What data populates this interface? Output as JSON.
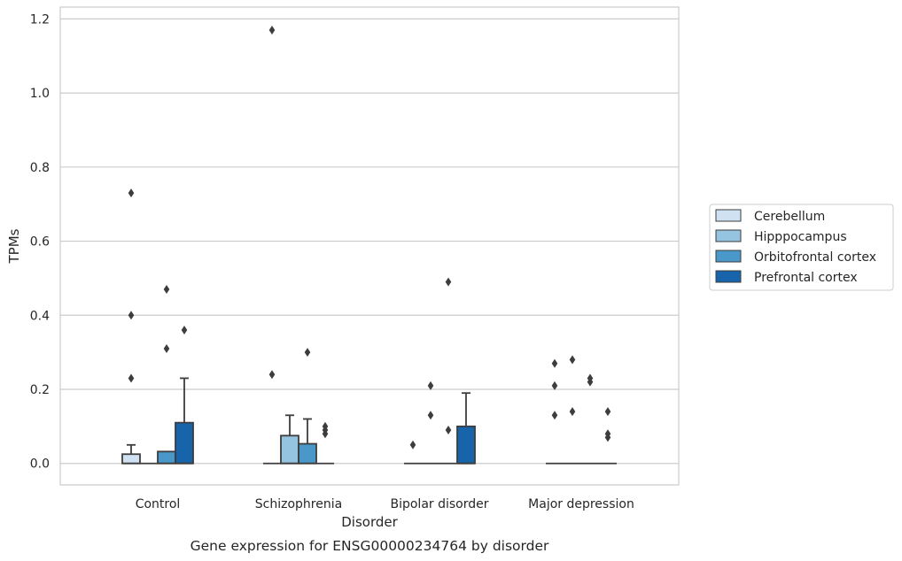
{
  "chart_data": {
    "type": "box",
    "title": "",
    "caption": "Gene expression for ENSG00000234764 by disorder",
    "xlabel": "Disorder",
    "ylabel": "TPMs",
    "ylim": [
      -0.058,
      1.232
    ],
    "yticks": [
      0.0,
      0.2,
      0.4,
      0.6,
      0.8,
      1.0,
      1.2
    ],
    "ytick_labels": [
      "0.0",
      "0.2",
      "0.4",
      "0.6",
      "0.8",
      "1.0",
      "1.2"
    ],
    "grid": "horizontal",
    "legend_placement": "right",
    "categories": [
      "Control",
      "Schizophrenia",
      "Bipolar disorder",
      "Major depression"
    ],
    "series": [
      {
        "name": "Cerebellum",
        "color": "#d0e2f2",
        "boxes": [
          {
            "q1": 0.0,
            "median": 0.0,
            "q3": 0.025,
            "whisker_low": 0.0,
            "whisker_high": 0.05,
            "outliers": [
              0.23,
              0.4,
              0.73
            ]
          },
          {
            "q1": 0.0,
            "median": 0.0,
            "q3": 0.0,
            "whisker_low": 0.0,
            "whisker_high": 0.0,
            "outliers": [
              0.24,
              1.17
            ]
          },
          {
            "q1": 0.0,
            "median": 0.0,
            "q3": 0.0,
            "whisker_low": 0.0,
            "whisker_high": 0.0,
            "outliers": [
              0.05
            ]
          },
          {
            "q1": 0.0,
            "median": 0.0,
            "q3": 0.0,
            "whisker_low": 0.0,
            "whisker_high": 0.0,
            "outliers": [
              0.13,
              0.21,
              0.27
            ]
          }
        ]
      },
      {
        "name": "Hipppocampus",
        "color": "#94c4df",
        "boxes": [
          {
            "q1": 0.0,
            "median": 0.0,
            "q3": 0.0,
            "whisker_low": 0.0,
            "whisker_high": 0.0,
            "outliers": []
          },
          {
            "q1": 0.0,
            "median": 0.0,
            "q3": 0.075,
            "whisker_low": 0.0,
            "whisker_high": 0.13,
            "outliers": []
          },
          {
            "q1": 0.0,
            "median": 0.0,
            "q3": 0.0,
            "whisker_low": 0.0,
            "whisker_high": 0.0,
            "outliers": [
              0.13,
              0.21
            ]
          },
          {
            "q1": 0.0,
            "median": 0.0,
            "q3": 0.0,
            "whisker_low": 0.0,
            "whisker_high": 0.0,
            "outliers": [
              0.14,
              0.28
            ]
          }
        ]
      },
      {
        "name": "Orbitofrontal cortex",
        "color": "#4a98c9",
        "boxes": [
          {
            "q1": 0.0,
            "median": 0.0,
            "q3": 0.032,
            "whisker_low": 0.0,
            "whisker_high": 0.032,
            "outliers": [
              0.31,
              0.47
            ]
          },
          {
            "q1": 0.0,
            "median": 0.0,
            "q3": 0.053,
            "whisker_low": 0.0,
            "whisker_high": 0.12,
            "outliers": [
              0.3
            ]
          },
          {
            "q1": 0.0,
            "median": 0.0,
            "q3": 0.0,
            "whisker_low": 0.0,
            "whisker_high": 0.0,
            "outliers": [
              0.09,
              0.49
            ]
          },
          {
            "q1": 0.0,
            "median": 0.0,
            "q3": 0.0,
            "whisker_low": 0.0,
            "whisker_high": 0.0,
            "outliers": [
              0.22,
              0.23
            ]
          }
        ]
      },
      {
        "name": "Prefrontal cortex",
        "color": "#1764ab",
        "boxes": [
          {
            "q1": 0.0,
            "median": 0.0,
            "q3": 0.11,
            "whisker_low": 0.0,
            "whisker_high": 0.23,
            "outliers": [
              0.36
            ]
          },
          {
            "q1": 0.0,
            "median": 0.0,
            "q3": 0.0,
            "whisker_low": 0.0,
            "whisker_high": 0.0,
            "outliers": [
              0.08,
              0.09,
              0.1
            ]
          },
          {
            "q1": 0.0,
            "median": 0.0,
            "q3": 0.1,
            "whisker_low": 0.0,
            "whisker_high": 0.19,
            "outliers": []
          },
          {
            "q1": 0.0,
            "median": 0.0,
            "q3": 0.0,
            "whisker_low": 0.0,
            "whisker_high": 0.0,
            "outliers": [
              0.07,
              0.08,
              0.14
            ]
          }
        ]
      }
    ]
  }
}
